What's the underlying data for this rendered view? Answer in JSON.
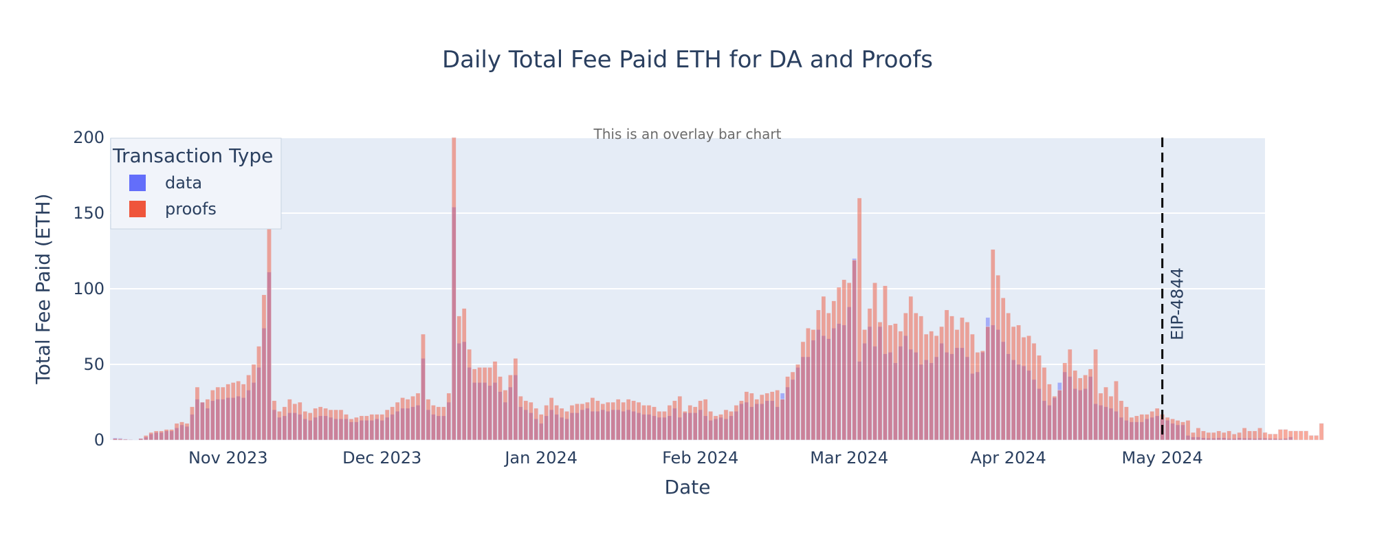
{
  "chart_data": {
    "type": "bar",
    "barmode": "overlay",
    "title": "Daily Total Fee Paid ETH for DA and Proofs",
    "subtitle": "This is an overlay bar chart",
    "xlabel": "Date",
    "ylabel": "Total Fee Paid (ETH)",
    "x_range": [
      "2023-10-09",
      "2024-05-21"
    ],
    "ylim": [
      0,
      200
    ],
    "y_ticks": [
      0,
      50,
      100,
      150,
      200
    ],
    "x_ticks": [
      {
        "date": "2023-11-01",
        "label": "Nov 2023"
      },
      {
        "date": "2023-12-01",
        "label": "Dec 2023"
      },
      {
        "date": "2024-01-01",
        "label": "Jan 2024"
      },
      {
        "date": "2024-02-01",
        "label": "Feb 2024"
      },
      {
        "date": "2024-03-01",
        "label": "Mar 2024"
      },
      {
        "date": "2024-04-01",
        "label": "Apr 2024"
      },
      {
        "date": "2024-05-01",
        "label": "May 2024"
      }
    ],
    "grid": true,
    "legend": {
      "title": "Transaction Type",
      "position": "top-left"
    },
    "annotation": {
      "date": "2024-05-01",
      "text": "EIP-4844",
      "style": "dashed-vertical-line"
    },
    "start_date": "2023-10-10",
    "series": [
      {
        "name": "data",
        "color": "#636efa",
        "values": [
          1.5,
          1.2,
          0.8,
          0.5,
          0.3,
          1,
          2,
          4,
          5,
          5,
          6,
          6,
          8,
          10,
          9,
          17,
          27,
          25,
          21,
          26,
          27,
          27,
          28,
          28,
          29,
          28,
          33,
          38,
          48,
          74,
          111,
          20,
          15,
          16,
          18,
          18,
          17,
          14,
          13,
          15,
          16,
          16,
          15,
          14,
          14,
          14,
          12,
          12,
          13,
          13,
          13,
          14,
          13,
          15,
          17,
          19,
          21,
          21,
          22,
          23,
          54,
          20,
          17,
          16,
          16,
          25,
          154,
          64,
          65,
          48,
          38,
          38,
          38,
          36,
          38,
          32,
          25,
          35,
          43,
          22,
          20,
          18,
          14,
          11,
          16,
          20,
          17,
          15,
          14,
          18,
          18,
          20,
          21,
          19,
          19,
          20,
          19,
          20,
          20,
          19,
          20,
          19,
          18,
          17,
          17,
          16,
          15,
          15,
          16,
          21,
          15,
          18,
          18,
          18,
          20,
          16,
          13,
          14,
          15,
          14,
          16,
          19,
          24,
          25,
          22,
          24,
          24,
          26,
          26,
          22,
          31,
          35,
          40,
          48,
          55,
          55,
          66,
          73,
          69,
          67,
          74,
          77,
          76,
          88,
          120,
          52,
          64,
          75,
          62,
          75,
          57,
          58,
          51,
          62,
          69,
          60,
          58,
          50,
          53,
          51,
          55,
          64,
          58,
          57,
          61,
          61,
          55,
          44,
          45,
          58,
          81,
          76,
          73,
          65,
          57,
          53,
          50,
          49,
          46,
          40,
          34,
          26,
          23,
          28,
          38,
          45,
          42,
          34,
          33,
          34,
          42,
          24,
          23,
          22,
          21,
          19,
          15,
          13,
          12,
          12,
          12,
          14,
          15,
          16,
          14,
          13,
          11,
          10,
          10,
          3,
          2,
          2,
          1.5,
          1.2,
          1.2,
          1.5,
          1.5,
          1,
          1,
          1.5,
          1.2,
          1.2,
          1,
          1.2,
          1.2,
          1,
          1,
          0.8,
          1,
          2
        ]
      },
      {
        "name": "proofs",
        "color": "#ef553b",
        "values": [
          1,
          0.8,
          0.5,
          0.3,
          0.2,
          1,
          3,
          5,
          6,
          6,
          7,
          7,
          11,
          12,
          11,
          22,
          35,
          25,
          27,
          33,
          35,
          35,
          37,
          38,
          39,
          37,
          43,
          50,
          62,
          96,
          145,
          26,
          19,
          22,
          27,
          24,
          25,
          19,
          18,
          21,
          22,
          21,
          20,
          20,
          20,
          17,
          14,
          15,
          16,
          16,
          17,
          17,
          17,
          20,
          22,
          25,
          28,
          27,
          29,
          31,
          70,
          27,
          23,
          22,
          22,
          31,
          200,
          82,
          87,
          60,
          47,
          48,
          48,
          48,
          52,
          42,
          33,
          43,
          54,
          29,
          26,
          25,
          21,
          17,
          23,
          28,
          23,
          21,
          19,
          23,
          24,
          24,
          25,
          28,
          26,
          24,
          25,
          25,
          27,
          25,
          27,
          26,
          25,
          23,
          23,
          22,
          19,
          19,
          23,
          26,
          29,
          19,
          23,
          22,
          26,
          27,
          19,
          16,
          17,
          20,
          19,
          23,
          26,
          32,
          31,
          27,
          30,
          31,
          32,
          33,
          27,
          42,
          45,
          50,
          65,
          74,
          73,
          86,
          95,
          84,
          92,
          101,
          106,
          104,
          119,
          160,
          73,
          87,
          104,
          78,
          102,
          76,
          77,
          72,
          84,
          95,
          84,
          82,
          70,
          72,
          69,
          75,
          86,
          82,
          73,
          81,
          78,
          70,
          58,
          59,
          75,
          126,
          109,
          94,
          84,
          75,
          76,
          68,
          69,
          64,
          56,
          48,
          37,
          29,
          33,
          51,
          60,
          46,
          41,
          43,
          47,
          60,
          31,
          35,
          29,
          39,
          26,
          22,
          15,
          16,
          17,
          17,
          19,
          21,
          17,
          15,
          14,
          13,
          12,
          13,
          5,
          8,
          6,
          5,
          5,
          6,
          5,
          6,
          4,
          5,
          8,
          6,
          6,
          8,
          5,
          4,
          4,
          7,
          7,
          6,
          6,
          6,
          6,
          3,
          3,
          11
        ]
      }
    ]
  }
}
